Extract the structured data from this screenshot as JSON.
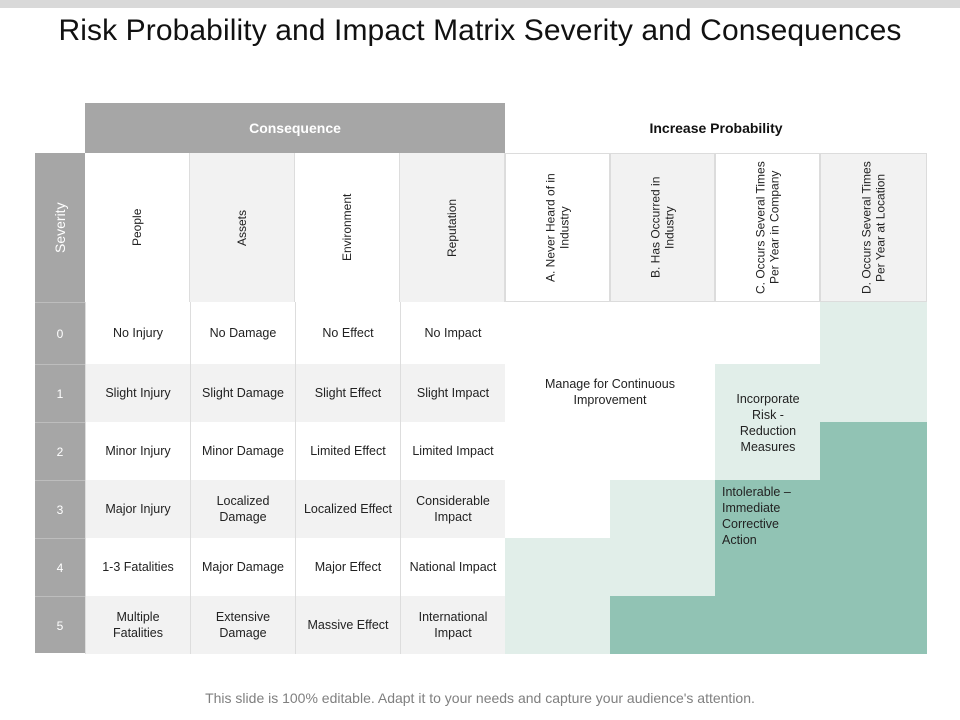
{
  "title": "Risk Probability and Impact Matrix Severity and Consequences",
  "footer": "This slide is 100% editable. Adapt it to your needs and capture your audience's attention.",
  "matrix": {
    "consequence_header": "Consequence",
    "probability_header": "Increase Probability",
    "severity_label": "Severity",
    "consequence_columns": [
      "People",
      "Assets",
      "Environment",
      "Reputation"
    ],
    "probability_columns": [
      "A. Never Heard of in Industry",
      "B. Has Occurred in Industry",
      "C. Occurs Several Times Per Year in Company",
      "D. Occurs Several Times Per Year at Location"
    ],
    "rows": [
      {
        "severity": "0",
        "people": "No Injury",
        "assets": "No Damage",
        "environment": "No Effect",
        "reputation": "No Impact"
      },
      {
        "severity": "1",
        "people": "Slight Injury",
        "assets": "Slight Damage",
        "environment": "Slight Effect",
        "reputation": "Slight Impact"
      },
      {
        "severity": "2",
        "people": "Minor Injury",
        "assets": "Minor Damage",
        "environment": "Limited Effect",
        "reputation": "Limited Impact"
      },
      {
        "severity": "3",
        "people": "Major Injury",
        "assets": "Localized Damage",
        "environment": "Localized Effect",
        "reputation": "Considerable Impact"
      },
      {
        "severity": "4",
        "people": "1-3 Fatalities",
        "assets": "Major Damage",
        "environment": "Major Effect",
        "reputation": "National Impact"
      },
      {
        "severity": "5",
        "people": "Multiple Fatalities",
        "assets": "Extensive Damage",
        "environment": "Massive Effect",
        "reputation": "International Impact"
      }
    ],
    "zones": {
      "low": "Manage for Continuous Improvement",
      "medium": "Incorporate Risk - Reduction Measures",
      "high": "Intolerable – Immediate Corrective Action"
    },
    "colors": {
      "header_gray": "#a6a6a6",
      "light_gray": "#f2f2f2",
      "medium_zone": "#e1eee9",
      "high_zone": "#91c3b4"
    }
  }
}
